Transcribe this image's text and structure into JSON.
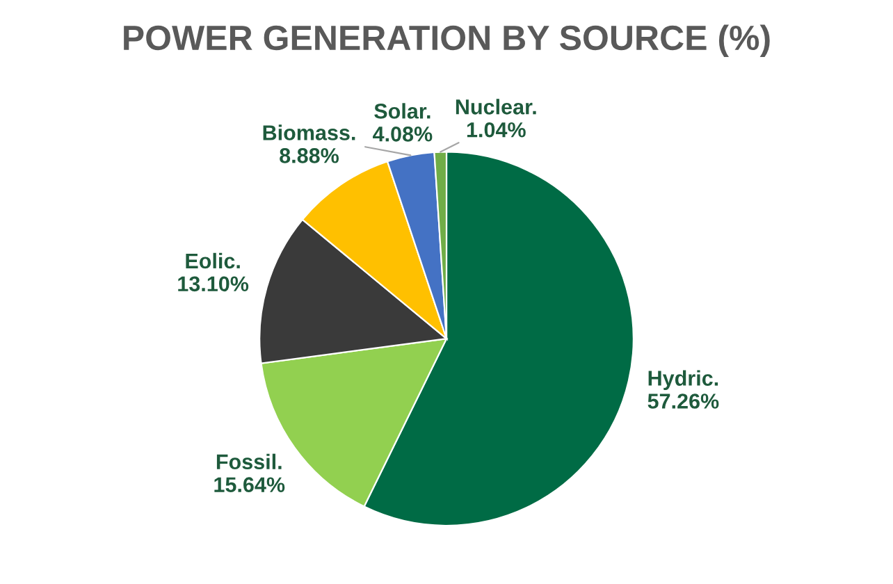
{
  "chart_data": {
    "type": "pie",
    "title": "POWER GENERATION BY SOURCE (%)",
    "categories": [
      "Hydric.",
      "Fossil.",
      "Eolic.",
      "Biomass.",
      "Solar.",
      "Nuclear."
    ],
    "values": [
      57.26,
      15.64,
      13.1,
      8.88,
      4.08,
      1.04
    ],
    "value_labels": [
      "57.26%",
      "15.64%",
      "13.10%",
      "8.88%",
      "4.08%",
      "1.04%"
    ],
    "colors": [
      "#006b45",
      "#92d050",
      "#3a3a3a",
      "#ffc000",
      "#4472c4",
      "#70ad47"
    ],
    "legend": false
  }
}
